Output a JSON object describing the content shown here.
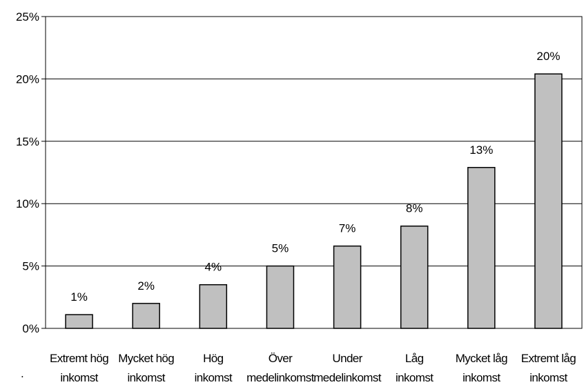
{
  "chart_data": {
    "type": "bar",
    "categories": [
      [
        "Extremt hög",
        "inkomst"
      ],
      [
        "Mycket hög",
        "inkomst"
      ],
      [
        "Hög",
        "inkomst"
      ],
      [
        "Över",
        "medelinkomst"
      ],
      [
        "Under",
        "medelinkomst"
      ],
      [
        "Låg",
        "inkomst"
      ],
      [
        "Mycket låg",
        "inkomst"
      ],
      [
        "Extremt låg",
        "inkomst"
      ]
    ],
    "values": [
      1.1,
      2.0,
      3.5,
      5.0,
      6.6,
      8.2,
      12.9,
      20.4
    ],
    "data_labels": [
      "1%",
      "2%",
      "4%",
      "5%",
      "7%",
      "8%",
      "13%",
      "20%"
    ],
    "yticks": [
      0,
      5,
      10,
      15,
      20,
      25
    ],
    "ytick_labels": [
      "0%",
      "5%",
      "10%",
      "15%",
      "20%",
      "25%"
    ],
    "ylim": [
      0,
      25
    ],
    "grid": true,
    "colors": {
      "bar_fill": "#c0c0c0",
      "bar_stroke": "#000000",
      "grid": "#000000"
    }
  },
  "stray_mark": "."
}
